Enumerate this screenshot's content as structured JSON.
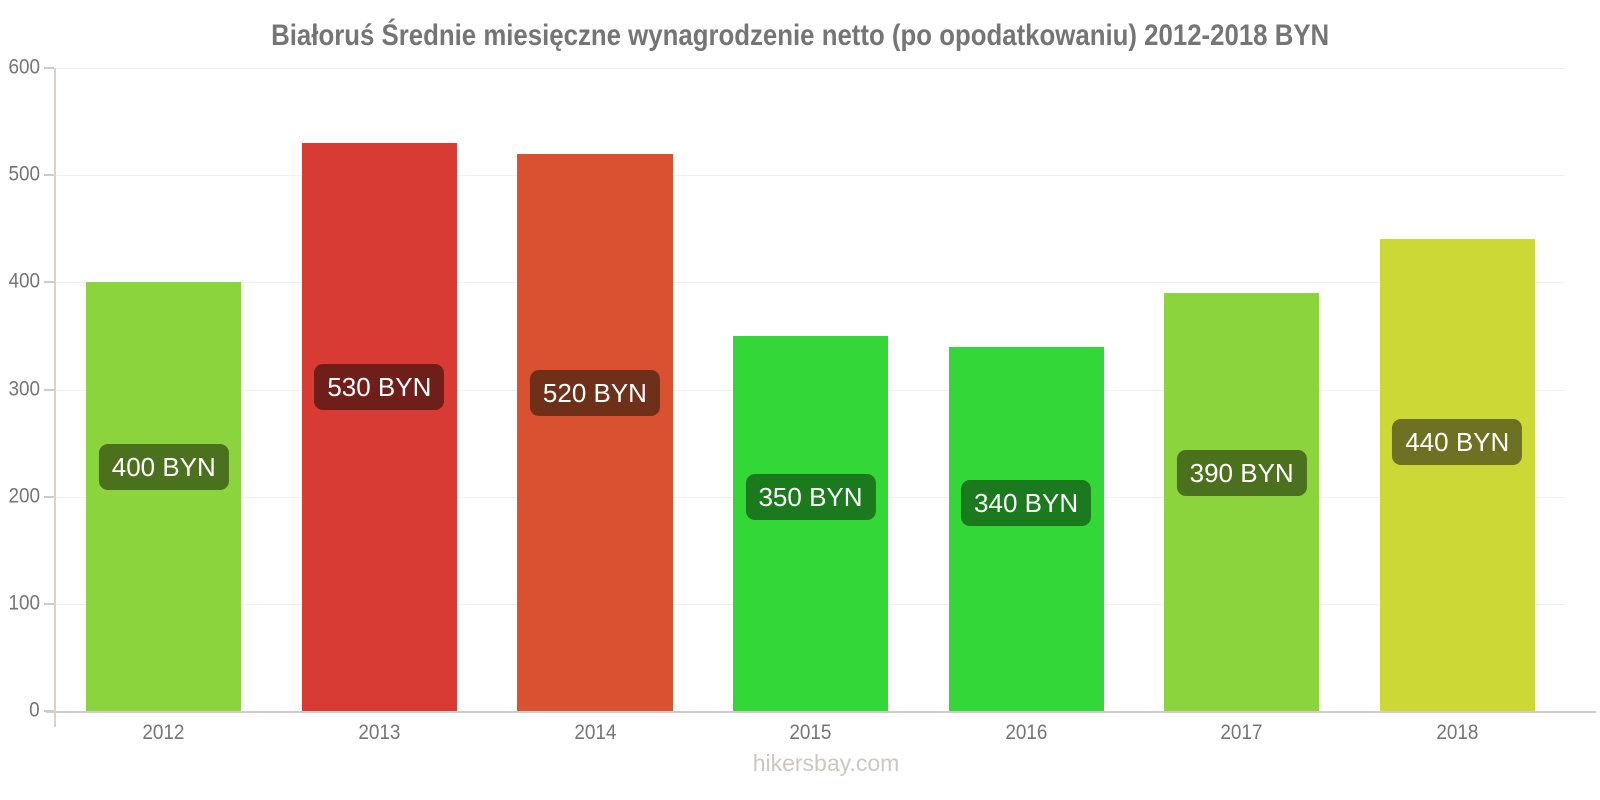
{
  "title": "Białoruś Średnie miesięczne wynagrodzenie netto (po opodatkowaniu) 2012-2018 BYN",
  "footer": {
    "credits_text": "hikersbay.com"
  },
  "chart_data": {
    "type": "bar",
    "title": "Białoruś Średnie miesięczne wynagrodzenie netto (po opodatkowaniu) 2012-2018 BYN",
    "categories": [
      "2012",
      "2013",
      "2014",
      "2015",
      "2016",
      "2017",
      "2018"
    ],
    "values": [
      400,
      530,
      520,
      350,
      340,
      390,
      440
    ],
    "labels": [
      "400 BYN",
      "530 BYN",
      "520 BYN",
      "350 BYN",
      "340 BYN",
      "390 BYN",
      "440 BYN"
    ],
    "unit": "BYN",
    "bar_colors": [
      "#8CD43E",
      "#D83B34",
      "#D95130",
      "#34D738",
      "#34D738",
      "#8CD43E",
      "#CBD836"
    ],
    "label_bg_colors": [
      "#4C711E",
      "#6F1E1A",
      "#6E3018",
      "#1C7A1E",
      "#1C7A1E",
      "#4C711E",
      "#6F7122"
    ],
    "label_text_color": "#FFFFFF",
    "xlabel": "",
    "ylabel": "",
    "ylim": [
      0,
      600
    ],
    "yticks": [
      0,
      100,
      200,
      300,
      400,
      500,
      600
    ],
    "grid": true,
    "legend_position": "none"
  }
}
